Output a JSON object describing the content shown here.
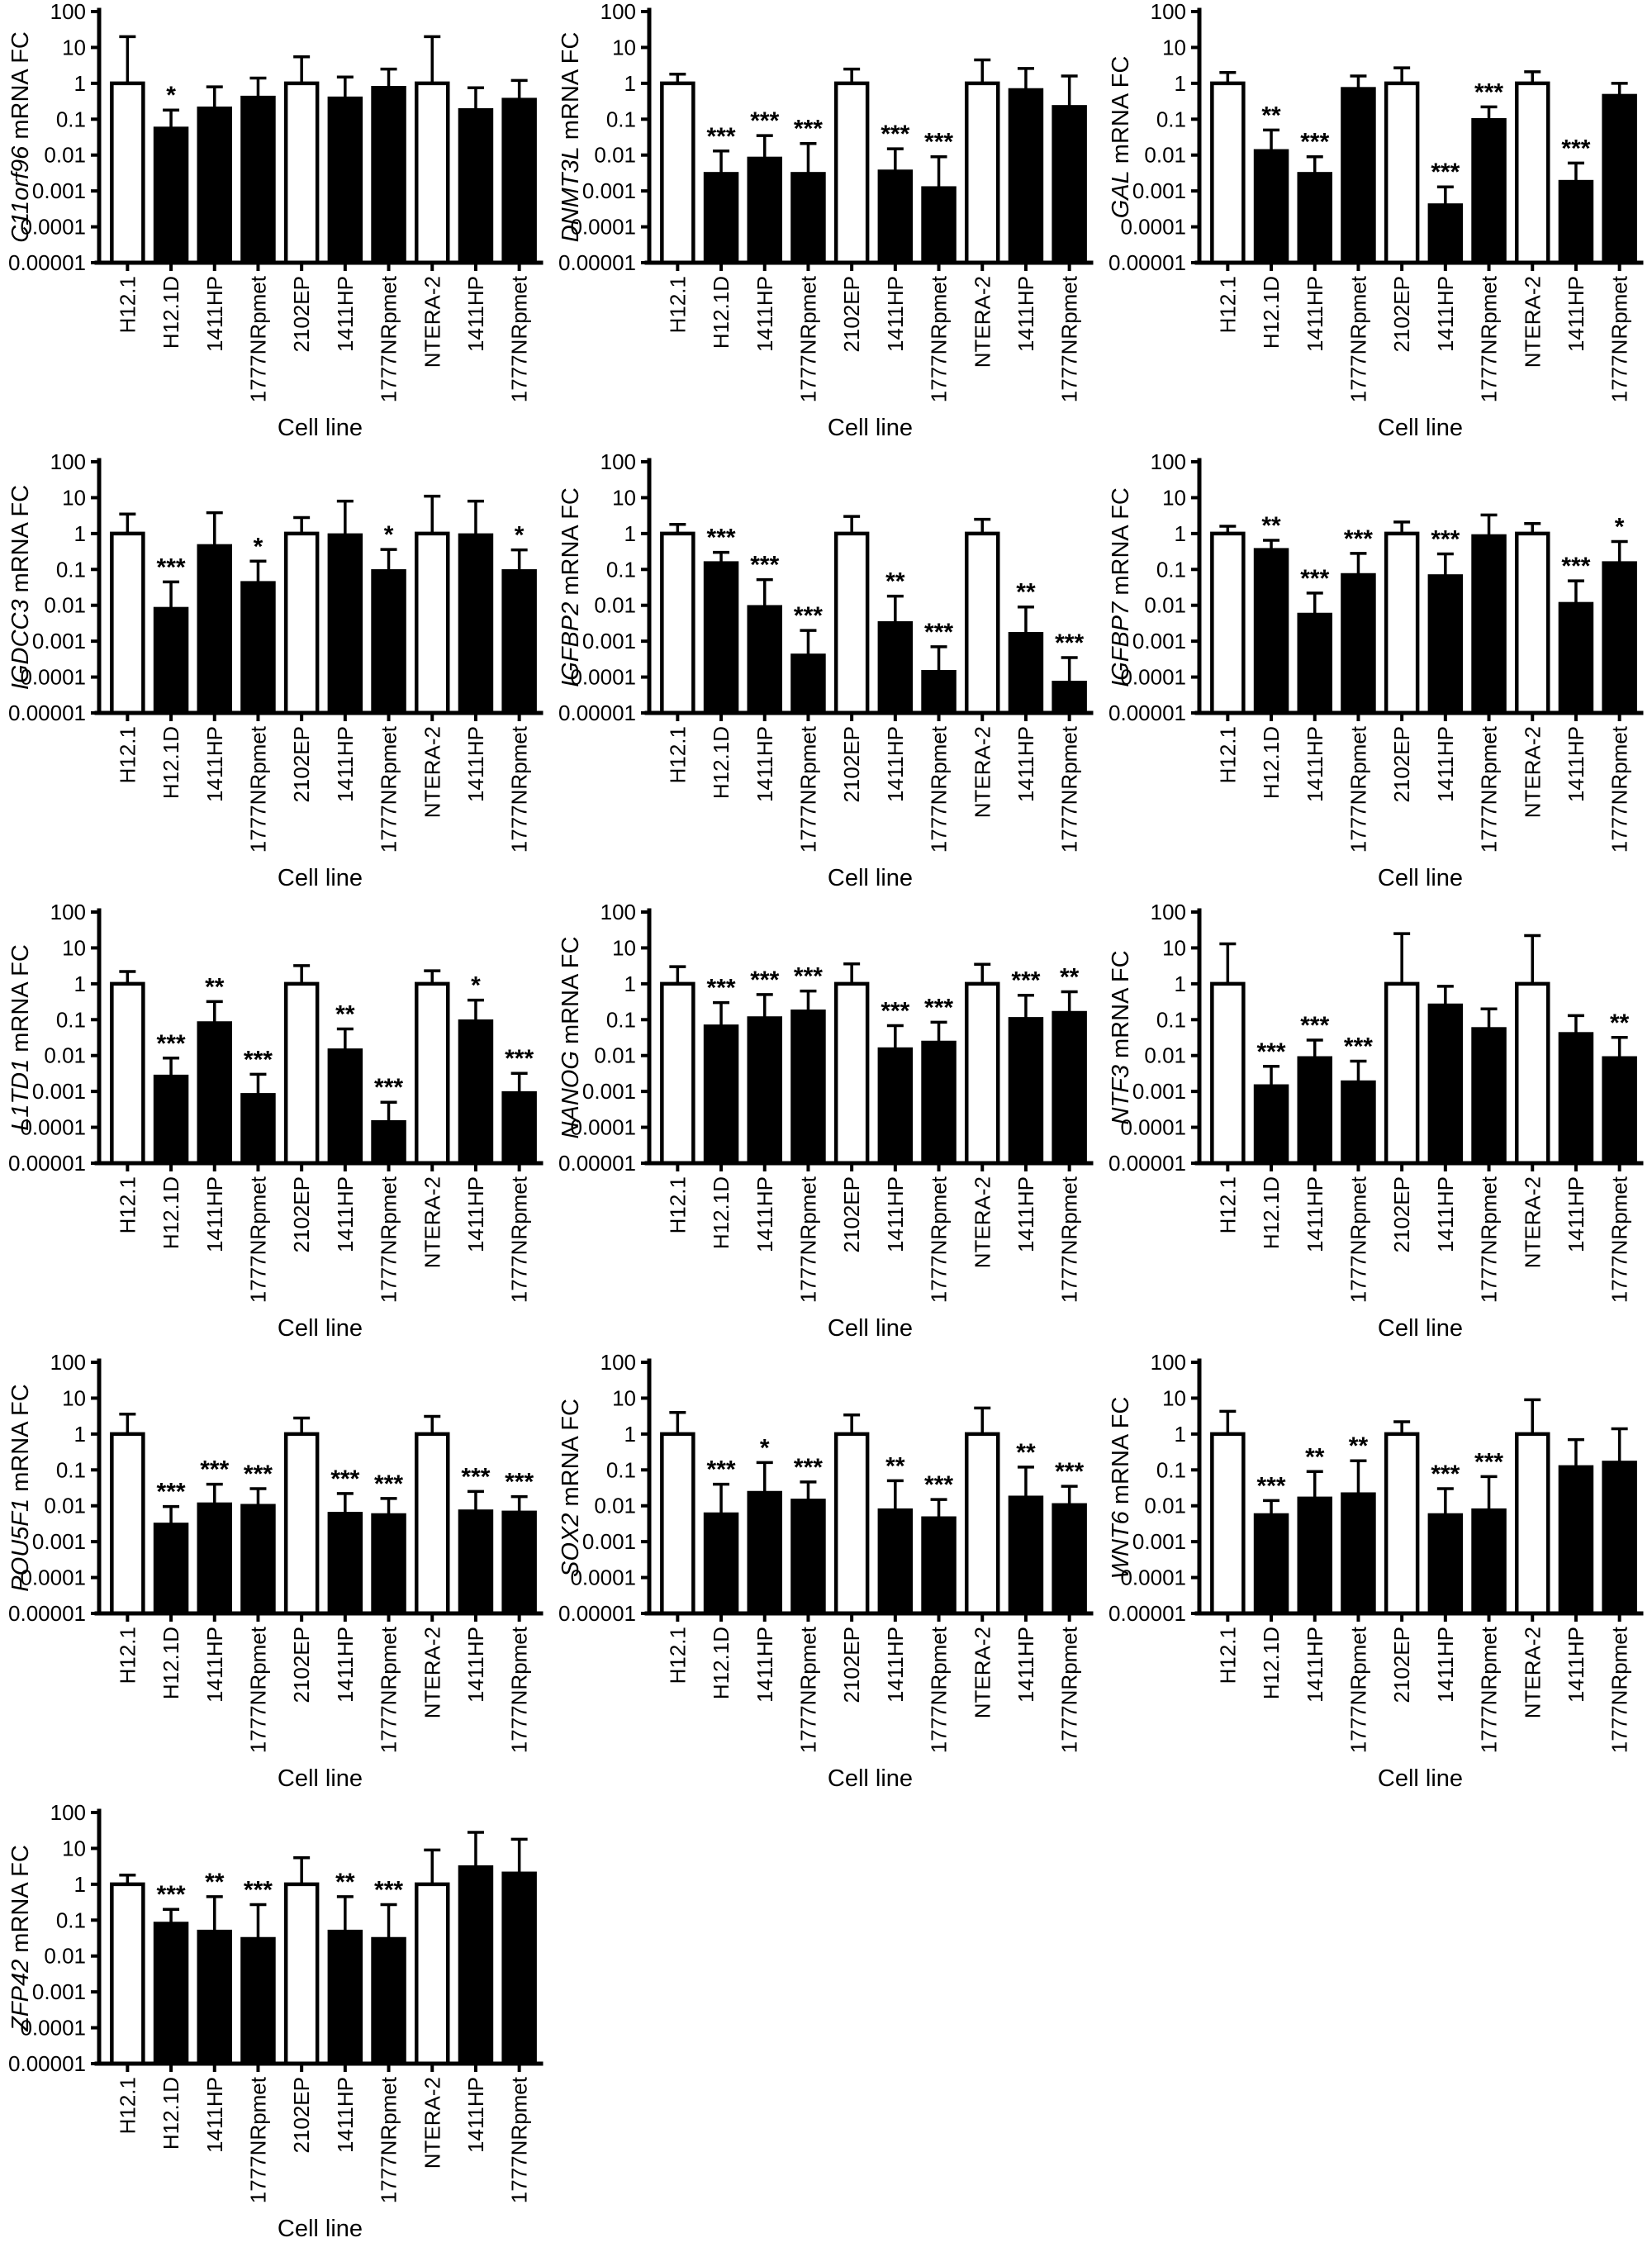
{
  "figure": {
    "xlabel": "Cell line",
    "ylabel_suffix": " mRNA FC",
    "y_ticks": [
      "100",
      "10",
      "1",
      "0.1",
      "0.01",
      "0.001",
      "0.0001",
      "0.00001"
    ],
    "categories": [
      "H12.1",
      "H12.1D",
      "1411HP",
      "1777NRpmet",
      "2102EP",
      "1411HP",
      "1777NRpmet",
      "NTERA-2",
      "1411HP",
      "1777NRpmet"
    ],
    "bar_styles": [
      "open",
      "filled",
      "filled",
      "filled",
      "open",
      "filled",
      "filled",
      "open",
      "filled",
      "filled"
    ],
    "colors": {
      "open_fill": "#ffffff",
      "filled_fill": "#000000",
      "stroke": "#000000"
    }
  },
  "chart_data": [
    {
      "type": "bar",
      "gene": "C11orf96",
      "ylabel": "C11orf96 mRNA FC",
      "xlabel": "Cell line",
      "yscale": "log",
      "ylim": [
        1e-05,
        100
      ],
      "categories": [
        "H12.1",
        "H12.1D",
        "1411HP",
        "1777NRpmet",
        "2102EP",
        "1411HP",
        "1777NRpmet",
        "NTERA-2",
        "1411HP",
        "1777NRpmet"
      ],
      "values": [
        1,
        0.055,
        0.2,
        0.4,
        1,
        0.38,
        0.75,
        1,
        0.18,
        0.35
      ],
      "error_top": [
        20,
        0.18,
        0.8,
        1.4,
        5.5,
        1.5,
        2.5,
        20,
        0.75,
        1.2
      ],
      "significance": [
        "",
        "*",
        "",
        "",
        "",
        "",
        "",
        "",
        "",
        ""
      ]
    },
    {
      "type": "bar",
      "gene": "DNMT3L",
      "ylabel": "DNMT3L mRNA FC",
      "xlabel": "Cell line",
      "yscale": "log",
      "ylim": [
        1e-05,
        100
      ],
      "categories": [
        "H12.1",
        "H12.1D",
        "1411HP",
        "1777NRpmet",
        "2102EP",
        "1411HP",
        "1777NRpmet",
        "NTERA-2",
        "1411HP",
        "1777NRpmet"
      ],
      "values": [
        1,
        0.003,
        0.008,
        0.003,
        1,
        0.0035,
        0.0012,
        1,
        0.65,
        0.22
      ],
      "error_top": [
        1.8,
        0.013,
        0.035,
        0.021,
        2.5,
        0.015,
        0.009,
        4.5,
        2.6,
        1.6
      ],
      "significance": [
        "",
        "***",
        "***",
        "***",
        "",
        "***",
        "***",
        "",
        "",
        ""
      ]
    },
    {
      "type": "bar",
      "gene": "GAL",
      "ylabel": "GAL mRNA FC",
      "xlabel": "Cell line",
      "yscale": "log",
      "ylim": [
        1e-05,
        100
      ],
      "categories": [
        "H12.1",
        "H12.1D",
        "1411HP",
        "1777NRpmet",
        "2102EP",
        "1411HP",
        "1777NRpmet",
        "NTERA-2",
        "1411HP",
        "1777NRpmet"
      ],
      "values": [
        1,
        0.013,
        0.003,
        0.7,
        1,
        0.0004,
        0.095,
        1,
        0.0018,
        0.45
      ],
      "error_top": [
        2,
        0.05,
        0.009,
        1.6,
        2.7,
        0.0013,
        0.22,
        2.1,
        0.006,
        1.0
      ],
      "significance": [
        "",
        "**",
        "***",
        "",
        "",
        "***",
        "***",
        "",
        "***",
        ""
      ]
    },
    {
      "type": "bar",
      "gene": "IGDCC3",
      "ylabel": "IGDCC3 mRNA FC",
      "xlabel": "Cell line",
      "yscale": "log",
      "ylim": [
        1e-05,
        100
      ],
      "categories": [
        "H12.1",
        "H12.1D",
        "1411HP",
        "1777NRpmet",
        "2102EP",
        "1411HP",
        "1777NRpmet",
        "NTERA-2",
        "1411HP",
        "1777NRpmet"
      ],
      "values": [
        1,
        0.008,
        0.45,
        0.042,
        1,
        0.9,
        0.09,
        1,
        0.9,
        0.09
      ],
      "error_top": [
        3.5,
        0.045,
        3.8,
        0.17,
        2.8,
        8,
        0.36,
        11,
        8,
        0.35
      ],
      "significance": [
        "",
        "***",
        "",
        "*",
        "",
        "",
        "*",
        "",
        "",
        "*"
      ]
    },
    {
      "type": "bar",
      "gene": "IGFBP2",
      "ylabel": "IGFBP2 mRNA FC",
      "xlabel": "Cell line",
      "yscale": "log",
      "ylim": [
        1e-05,
        100
      ],
      "categories": [
        "H12.1",
        "H12.1D",
        "1411HP",
        "1777NRpmet",
        "2102EP",
        "1411HP",
        "1777NRpmet",
        "NTERA-2",
        "1411HP",
        "1777NRpmet"
      ],
      "values": [
        1,
        0.15,
        0.009,
        0.0004,
        1,
        0.0032,
        0.00014,
        1,
        0.0016,
        7e-05
      ],
      "error_top": [
        1.8,
        0.3,
        0.052,
        0.002,
        3,
        0.018,
        0.0007,
        2.5,
        0.009,
        0.00035
      ],
      "significance": [
        "",
        "***",
        "***",
        "***",
        "",
        "**",
        "***",
        "",
        "**",
        "***"
      ]
    },
    {
      "type": "bar",
      "gene": "IGFBP7",
      "ylabel": "IGFBP7 mRNA FC",
      "xlabel": "Cell line",
      "yscale": "log",
      "ylim": [
        1e-05,
        100
      ],
      "categories": [
        "H12.1",
        "H12.1D",
        "1411HP",
        "1777NRpmet",
        "2102EP",
        "1411HP",
        "1777NRpmet",
        "NTERA-2",
        "1411HP",
        "1777NRpmet"
      ],
      "values": [
        1,
        0.35,
        0.0055,
        0.07,
        1,
        0.065,
        0.85,
        1,
        0.011,
        0.15
      ],
      "error_top": [
        1.6,
        0.65,
        0.022,
        0.28,
        2.1,
        0.27,
        3.3,
        1.9,
        0.048,
        0.6
      ],
      "significance": [
        "",
        "**",
        "***",
        "***",
        "",
        "***",
        "",
        "",
        "***",
        "*"
      ]
    },
    {
      "type": "bar",
      "gene": "L1TD1",
      "ylabel": "L1TD1 mRNA FC",
      "xlabel": "Cell line",
      "yscale": "log",
      "ylim": [
        1e-05,
        100
      ],
      "categories": [
        "H12.1",
        "H12.1D",
        "1411HP",
        "1777NRpmet",
        "2102EP",
        "1411HP",
        "1777NRpmet",
        "NTERA-2",
        "1411HP",
        "1777NRpmet"
      ],
      "values": [
        1,
        0.0026,
        0.08,
        0.0008,
        1,
        0.014,
        0.00014,
        1,
        0.09,
        0.0009
      ],
      "error_top": [
        2.2,
        0.0085,
        0.32,
        0.003,
        3.2,
        0.055,
        0.0005,
        2.3,
        0.35,
        0.0032
      ],
      "significance": [
        "",
        "***",
        "**",
        "***",
        "",
        "**",
        "***",
        "",
        "*",
        "***"
      ]
    },
    {
      "type": "bar",
      "gene": "NANOG",
      "ylabel": "NANOG mRNA FC",
      "xlabel": "Cell line",
      "yscale": "log",
      "ylim": [
        1e-05,
        100
      ],
      "categories": [
        "H12.1",
        "H12.1D",
        "1411HP",
        "1777NRpmet",
        "2102EP",
        "1411HP",
        "1777NRpmet",
        "NTERA-2",
        "1411HP",
        "1777NRpmet"
      ],
      "values": [
        1,
        0.065,
        0.11,
        0.17,
        1,
        0.015,
        0.023,
        1,
        0.105,
        0.155
      ],
      "error_top": [
        3,
        0.3,
        0.5,
        0.63,
        3.6,
        0.068,
        0.085,
        3.5,
        0.48,
        0.6
      ],
      "significance": [
        "",
        "***",
        "***",
        "***",
        "",
        "***",
        "***",
        "",
        "***",
        "**"
      ]
    },
    {
      "type": "bar",
      "gene": "NTF3",
      "ylabel": "NTF3 mRNA FC",
      "xlabel": "Cell line",
      "yscale": "log",
      "ylim": [
        1e-05,
        100
      ],
      "categories": [
        "H12.1",
        "H12.1D",
        "1411HP",
        "1777NRpmet",
        "2102EP",
        "1411HP",
        "1777NRpmet",
        "NTERA-2",
        "1411HP",
        "1777NRpmet"
      ],
      "values": [
        1,
        0.0014,
        0.0085,
        0.0018,
        1,
        0.25,
        0.055,
        1,
        0.04,
        0.0085
      ],
      "error_top": [
        13,
        0.005,
        0.027,
        0.007,
        25,
        0.85,
        0.2,
        22,
        0.13,
        0.032
      ],
      "significance": [
        "",
        "***",
        "***",
        "***",
        "",
        "",
        "",
        "",
        "",
        "**"
      ]
    },
    {
      "type": "bar",
      "gene": "POU5F1",
      "ylabel": "POU5F1 mRNA FC",
      "xlabel": "Cell line",
      "yscale": "log",
      "ylim": [
        1e-05,
        100
      ],
      "categories": [
        "H12.1",
        "H12.1D",
        "1411HP",
        "1777NRpmet",
        "2102EP",
        "1411HP",
        "1777NRpmet",
        "NTERA-2",
        "1411HP",
        "1777NRpmet"
      ],
      "values": [
        1,
        0.003,
        0.011,
        0.01,
        1,
        0.006,
        0.0055,
        1,
        0.007,
        0.0065
      ],
      "error_top": [
        3.6,
        0.0095,
        0.04,
        0.03,
        2.8,
        0.022,
        0.016,
        3.1,
        0.025,
        0.018
      ],
      "significance": [
        "",
        "***",
        "***",
        "***",
        "",
        "***",
        "***",
        "",
        "***",
        "***"
      ]
    },
    {
      "type": "bar",
      "gene": "SOX2",
      "ylabel": "SOX2 mRNA FC",
      "xlabel": "Cell line",
      "yscale": "log",
      "ylim": [
        1e-05,
        100
      ],
      "categories": [
        "H12.1",
        "H12.1D",
        "1411HP",
        "1777NRpmet",
        "2102EP",
        "1411HP",
        "1777NRpmet",
        "NTERA-2",
        "1411HP",
        "1777NRpmet"
      ],
      "values": [
        1,
        0.0058,
        0.023,
        0.014,
        1,
        0.0075,
        0.0045,
        1,
        0.017,
        0.0105
      ],
      "error_top": [
        4,
        0.04,
        0.16,
        0.046,
        3.4,
        0.05,
        0.015,
        5.3,
        0.12,
        0.035
      ],
      "significance": [
        "",
        "***",
        "*",
        "***",
        "",
        "**",
        "***",
        "",
        "**",
        "***"
      ]
    },
    {
      "type": "bar",
      "gene": "WNT6",
      "ylabel": "WNT6 mRNA FC",
      "xlabel": "Cell line",
      "yscale": "log",
      "ylim": [
        1e-05,
        100
      ],
      "categories": [
        "H12.1",
        "H12.1D",
        "1411HP",
        "1777NRpmet",
        "2102EP",
        "1411HP",
        "1777NRpmet",
        "NTERA-2",
        "1411HP",
        "1777NRpmet"
      ],
      "values": [
        1,
        0.0055,
        0.016,
        0.021,
        1,
        0.0055,
        0.0075,
        1,
        0.12,
        0.16
      ],
      "error_top": [
        4.3,
        0.014,
        0.09,
        0.18,
        2.2,
        0.03,
        0.065,
        9,
        0.7,
        1.4
      ],
      "significance": [
        "",
        "***",
        "**",
        "**",
        "",
        "***",
        "***",
        "",
        "",
        ""
      ]
    },
    {
      "type": "bar",
      "gene": "ZFP42",
      "ylabel": "ZFP42 mRNA FC",
      "xlabel": "Cell line",
      "yscale": "log",
      "ylim": [
        1e-05,
        100
      ],
      "categories": [
        "H12.1",
        "H12.1D",
        "1411HP",
        "1777NRpmet",
        "2102EP",
        "1411HP",
        "1777NRpmet",
        "NTERA-2",
        "1411HP",
        "1777NRpmet"
      ],
      "values": [
        1,
        0.08,
        0.048,
        0.03,
        1,
        0.048,
        0.03,
        1,
        3,
        2
      ],
      "error_top": [
        1.8,
        0.2,
        0.45,
        0.27,
        5.5,
        0.45,
        0.27,
        9,
        28,
        18
      ],
      "significance": [
        "",
        "***",
        "**",
        "***",
        "",
        "**",
        "***",
        "",
        "",
        ""
      ]
    }
  ]
}
